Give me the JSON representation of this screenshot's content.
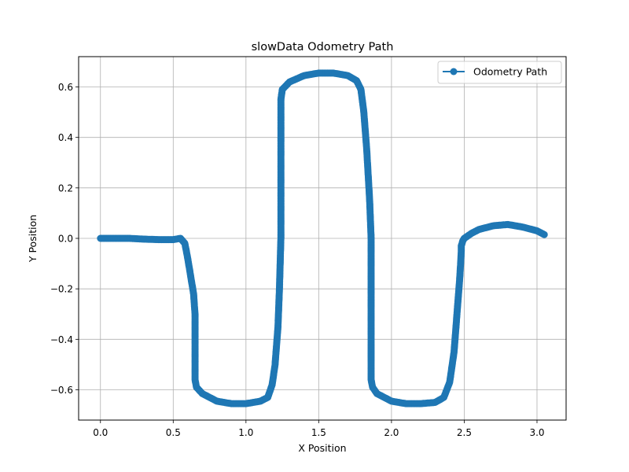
{
  "chart_data": {
    "type": "line",
    "title": "slowData Odometry Path",
    "xlabel": "X Position",
    "ylabel": "Y Position",
    "xlim": [
      -0.15,
      3.2
    ],
    "ylim": [
      -0.72,
      0.72
    ],
    "grid": true,
    "legend_position": "top-right",
    "x_ticks": [
      {
        "value": 0.0,
        "label": "0.0"
      },
      {
        "value": 0.5,
        "label": "0.5"
      },
      {
        "value": 1.0,
        "label": "1.0"
      },
      {
        "value": 1.5,
        "label": "1.5"
      },
      {
        "value": 2.0,
        "label": "2.0"
      },
      {
        "value": 2.5,
        "label": "2.5"
      },
      {
        "value": 3.0,
        "label": "3.0"
      }
    ],
    "y_ticks": [
      {
        "value": -0.6,
        "label": "−0.6"
      },
      {
        "value": -0.4,
        "label": "−0.4"
      },
      {
        "value": -0.2,
        "label": "−0.2"
      },
      {
        "value": 0.0,
        "label": "0.0"
      },
      {
        "value": 0.2,
        "label": "0.2"
      },
      {
        "value": 0.4,
        "label": "0.4"
      },
      {
        "value": 0.6,
        "label": "0.6"
      }
    ],
    "series": [
      {
        "name": "Odometry Path",
        "color": "#1f77b4",
        "marker": "circle",
        "x": [
          0.0,
          0.1,
          0.2,
          0.3,
          0.4,
          0.5,
          0.55,
          0.58,
          0.6,
          0.62,
          0.64,
          0.65,
          0.65,
          0.65,
          0.65,
          0.66,
          0.7,
          0.8,
          0.9,
          1.0,
          1.1,
          1.15,
          1.18,
          1.2,
          1.22,
          1.23,
          1.24,
          1.24,
          1.24,
          1.24,
          1.25,
          1.3,
          1.4,
          1.5,
          1.6,
          1.7,
          1.76,
          1.79,
          1.81,
          1.83,
          1.85,
          1.86,
          1.86,
          1.86,
          1.86,
          1.87,
          1.9,
          2.0,
          2.1,
          2.2,
          2.3,
          2.36,
          2.4,
          2.43,
          2.45,
          2.47,
          2.48,
          2.48,
          2.49,
          2.5,
          2.55,
          2.6,
          2.7,
          2.8,
          2.9,
          3.0,
          3.05
        ],
        "y": [
          0.0,
          0.0,
          0.0,
          -0.003,
          -0.005,
          -0.005,
          0.0,
          -0.02,
          -0.08,
          -0.15,
          -0.22,
          -0.3,
          -0.4,
          -0.5,
          -0.56,
          -0.59,
          -0.615,
          -0.645,
          -0.655,
          -0.655,
          -0.645,
          -0.63,
          -0.58,
          -0.5,
          -0.35,
          -0.2,
          0.0,
          0.2,
          0.4,
          0.55,
          0.59,
          0.62,
          0.645,
          0.655,
          0.655,
          0.645,
          0.625,
          0.59,
          0.5,
          0.35,
          0.15,
          0.0,
          -0.2,
          -0.4,
          -0.56,
          -0.59,
          -0.615,
          -0.645,
          -0.655,
          -0.655,
          -0.65,
          -0.63,
          -0.57,
          -0.45,
          -0.3,
          -0.15,
          -0.05,
          -0.03,
          -0.01,
          0.0,
          0.02,
          0.035,
          0.05,
          0.055,
          0.045,
          0.03,
          0.015
        ]
      }
    ]
  }
}
